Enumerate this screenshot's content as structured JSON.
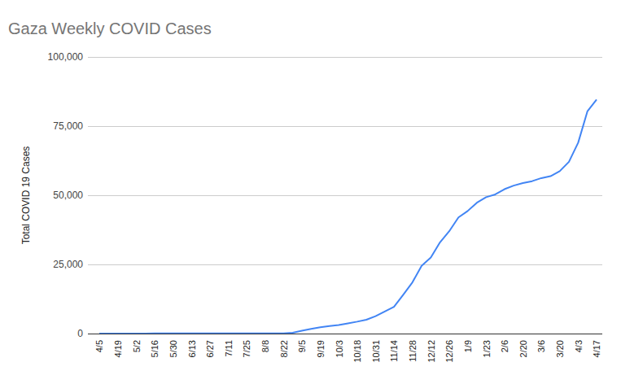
{
  "chart_data": {
    "type": "line",
    "title": "Gaza Weekly COVID Cases",
    "y_label": "Total COVID 19 Cases",
    "categories": [
      "4/5",
      null,
      "4/19",
      null,
      "5/2",
      null,
      "5/16",
      null,
      "5/30",
      null,
      "6/13",
      null,
      "6/27",
      null,
      "7/11",
      null,
      "7/25",
      null,
      "8/8",
      null,
      "8/22",
      null,
      "9/5",
      null,
      "9/19",
      null,
      "10/3",
      null,
      "10/18",
      null,
      "10/31",
      null,
      "11/14",
      null,
      "11/28",
      null,
      "12/12",
      null,
      "12/26",
      null,
      "1/9",
      null,
      "1/23",
      null,
      "2/6",
      null,
      "2/20",
      null,
      "3/6",
      null,
      "3/20",
      null,
      "4/3",
      null,
      "4/17"
    ],
    "values": [
      13,
      13,
      17,
      17,
      20,
      20,
      55,
      61,
      72,
      72,
      72,
      72,
      72,
      72,
      79,
      79,
      80,
      81,
      81,
      86,
      86,
      300,
      1000,
      1700,
      2300,
      2700,
      3100,
      3700,
      4300,
      5000,
      6300,
      8000,
      9700,
      14000,
      18500,
      24500,
      27500,
      33000,
      37000,
      42000,
      44300,
      47300,
      49300,
      50300,
      52200,
      53500,
      54400,
      55100,
      56200,
      56900,
      58700,
      62100,
      69000,
      80300,
      84600
    ],
    "color": "#4285f4",
    "ylim": [
      0,
      100000
    ],
    "yticks": [
      0,
      {
        "value": 25000,
        "label": "25,000"
      },
      {
        "value": 50000,
        "label": "50,000"
      },
      {
        "value": 75000,
        "label": "75,000"
      },
      {
        "value": 100000,
        "label": "100,000"
      }
    ],
    "grid": true
  }
}
